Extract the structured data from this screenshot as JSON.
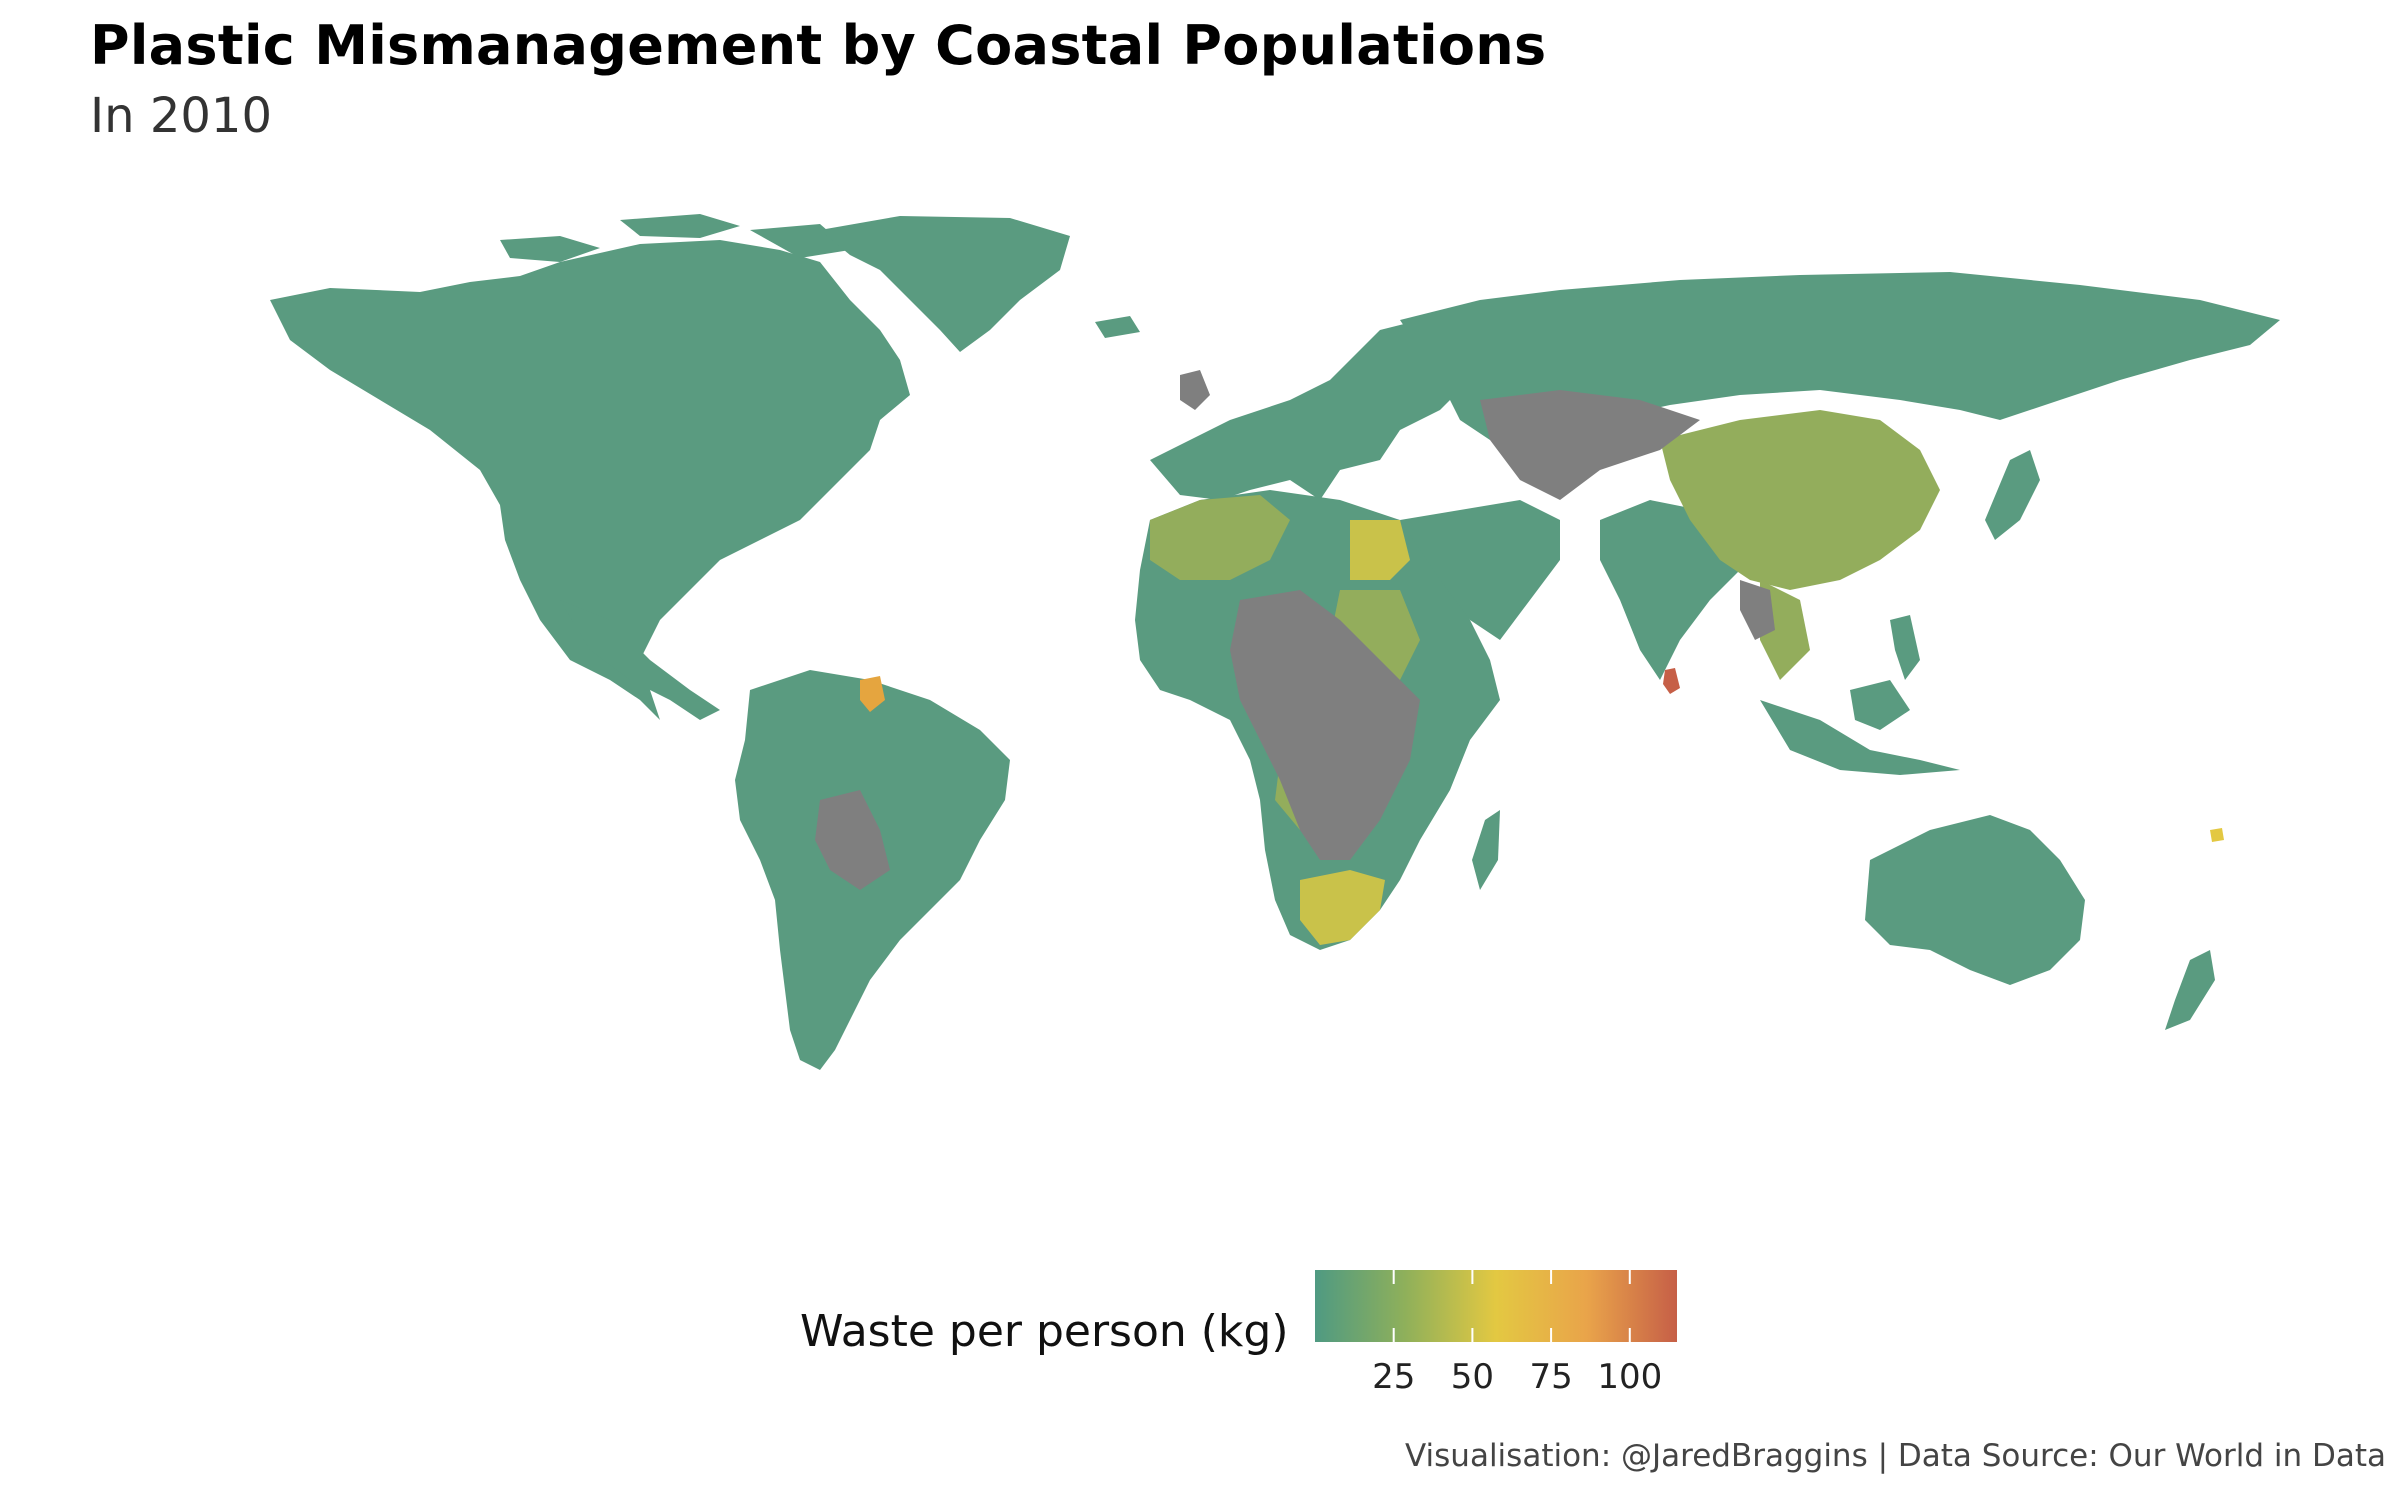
{
  "title": "Plastic Mismanagement by Coastal Populations",
  "subtitle": "In 2010",
  "caption": "Visualisation: @JaredBraggins | Data Source: Our World in Data",
  "legend": {
    "title": "Waste per person (kg)",
    "min": 0,
    "max": 115,
    "ticks": [
      {
        "value": 25,
        "label": "25"
      },
      {
        "value": 50,
        "label": "50"
      },
      {
        "value": 75,
        "label": "75"
      },
      {
        "value": 100,
        "label": "100"
      }
    ],
    "gradient": [
      "#4f9a82",
      "#8fb05a",
      "#e3c842",
      "#e9a44a",
      "#c65f47"
    ]
  },
  "colors": {
    "no_data": "#7f7f7f",
    "ocean": "#ffffff"
  }
}
